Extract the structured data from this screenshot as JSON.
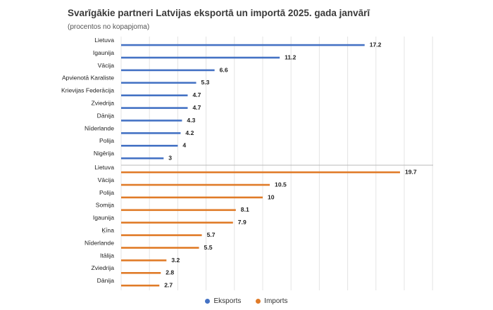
{
  "chart_data": {
    "type": "bar",
    "orientation": "horizontal",
    "title": "Svarīgākie partneri Latvijas eksportā un importā 2025. gada janvārī",
    "subtitle": "(procentos no kopapjoma)",
    "xlim": [
      0,
      22
    ],
    "grid": true,
    "legend_position": "bottom",
    "groups": [
      {
        "name": "Eksports",
        "color": "#4472c4",
        "categories": [
          "Lietuva",
          "Igaunija",
          "Vācija",
          "Apvienotā Karaliste",
          "Krievijas Federācija",
          "Zviedrija",
          "Dānija",
          "Nīderlande",
          "Polija",
          "Nigērija"
        ],
        "values": [
          17.2,
          11.2,
          6.6,
          5.3,
          4.7,
          4.7,
          4.3,
          4.2,
          4,
          3
        ],
        "value_labels": [
          "17.2",
          "11.2",
          "6.6",
          "5.3",
          "4.7",
          "4.7",
          "4.3",
          "4.2",
          "4",
          "3"
        ]
      },
      {
        "name": "Imports",
        "color": "#e07b28",
        "categories": [
          "Lietuva",
          "Vācija",
          "Polija",
          "Somija",
          "Igaunija",
          "Ķīna",
          "Nīderlande",
          "Itālija",
          "Zviedrija",
          "Dānija"
        ],
        "values": [
          19.7,
          10.5,
          10,
          8.1,
          7.9,
          5.7,
          5.5,
          3.2,
          2.8,
          2.7
        ],
        "value_labels": [
          "19.7",
          "10.5",
          "10",
          "8.1",
          "7.9",
          "5.7",
          "5.5",
          "3.2",
          "2.8",
          "2.7"
        ]
      }
    ]
  }
}
